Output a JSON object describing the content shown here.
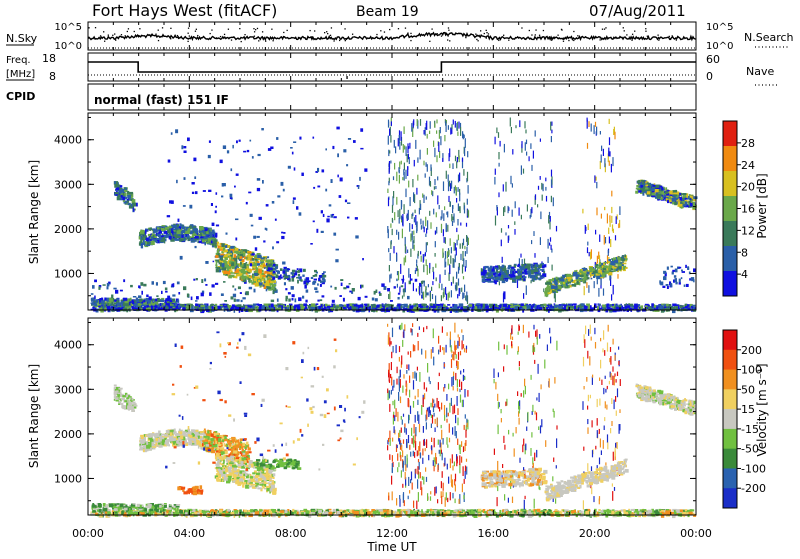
{
  "header": {
    "station": "Fort Hays West (fitACF)",
    "beam": "Beam 19",
    "date": "07/Aug/2011"
  },
  "panels": {
    "nsky": {
      "label": "N.Sky",
      "tick_top": "10^5",
      "tick_bottom": "10^0",
      "right_tick_top": "10^5",
      "right_tick_bottom": "10^0",
      "right_label": "N.Search"
    },
    "freq": {
      "label_top": "Freq.",
      "label_unit": "[MHz]",
      "tick_top": "18",
      "tick_bottom": "8",
      "right_tick_top": "60",
      "right_tick_bottom": "0",
      "right_label": "Nave"
    },
    "cpid": {
      "label": "CPID",
      "mode": "normal (fast) 151 IF"
    }
  },
  "chart_data": [
    {
      "type": "heatmap",
      "name": "power",
      "ylabel": "Slant Range [km]",
      "yticks": [
        "1000",
        "2000",
        "3000",
        "4000"
      ],
      "colorbar_label": "Power [dB]",
      "colorbar_ticks": [
        "28",
        "24",
        "20",
        "16",
        "12",
        "8",
        "4"
      ],
      "colors": [
        "#1010e0",
        "#2a5fa8",
        "#3a7a5a",
        "#6aa84a",
        "#d8c020",
        "#f08a10",
        "#e02010"
      ]
    },
    {
      "type": "heatmap",
      "name": "velocity",
      "ylabel": "Slant Range [km]",
      "yticks": [
        "1000",
        "2000",
        "3000",
        "4000"
      ],
      "colorbar_label": "Velocity [m s⁻¹]",
      "colorbar_ticks": [
        "200",
        "100",
        "50",
        "15",
        "-15",
        "-50",
        "-100",
        "-200"
      ],
      "colors": [
        "#1a2ec8",
        "#2a62b0",
        "#3a8a3a",
        "#70c040",
        "#c8c8c0",
        "#f0d060",
        "#f09020",
        "#f05010",
        "#e01010"
      ]
    }
  ],
  "xaxis": {
    "label": "Time UT",
    "ticks": [
      "00:00",
      "04:00",
      "08:00",
      "12:00",
      "16:00",
      "20:00",
      "00:00"
    ]
  }
}
